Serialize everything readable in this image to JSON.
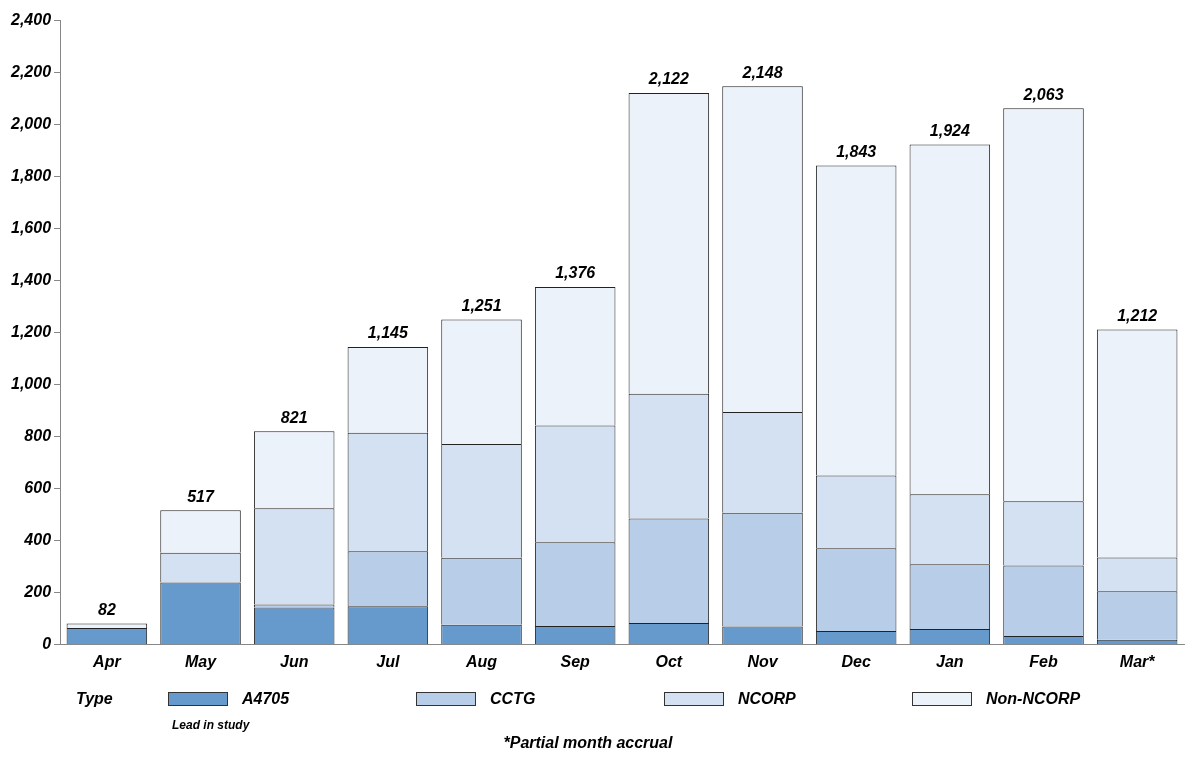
{
  "chart_data": {
    "type": "bar",
    "stacked": true,
    "categories": [
      "Apr",
      "May",
      "Jun",
      "Jul",
      "Aug",
      "Sep",
      "Oct",
      "Nov",
      "Dec",
      "Jan",
      "Feb",
      "Mar*"
    ],
    "series": [
      {
        "name": "A4705",
        "color": "#6699cc",
        "values": [
          65,
          240,
          143,
          148,
          77,
          72,
          84,
          70,
          53,
          61,
          34,
          19
        ]
      },
      {
        "name": "CCTG",
        "color": "#b8cde8",
        "values": [
          0,
          0,
          12,
          212,
          258,
          322,
          402,
          438,
          318,
          249,
          271,
          187
        ]
      },
      {
        "name": "NCORP",
        "color": "#d3e1f2",
        "values": [
          0,
          114,
          370,
          455,
          437,
          449,
          479,
          387,
          280,
          269,
          247,
          130
        ]
      },
      {
        "name": "Non-NCORP",
        "color": "#ecf2fa",
        "values": [
          17,
          163,
          296,
          330,
          479,
          533,
          1157,
          1253,
          1192,
          1345,
          1511,
          876
        ]
      }
    ],
    "totals": [
      "82",
      "517",
      "821",
      "1,145",
      "1,251",
      "1,376",
      "2,122",
      "2,148",
      "1,843",
      "1,924",
      "2,063",
      "1,212"
    ],
    "ylim": [
      0,
      2400
    ],
    "yticks": [
      0,
      200,
      400,
      600,
      800,
      {
        "value": 1000,
        "label": "1,000"
      },
      {
        "value": 1200,
        "label": "1,200"
      },
      {
        "value": 1400,
        "label": "1,400"
      },
      {
        "value": 1600,
        "label": "1,600"
      },
      {
        "value": 1800,
        "label": "1,800"
      },
      {
        "value": 2000,
        "label": "2,000"
      },
      {
        "value": 2200,
        "label": "2,200"
      },
      {
        "value": 2400,
        "label": "2,400"
      }
    ],
    "grid": false,
    "legend": "bottom",
    "legend_title": "Type",
    "annotations": [
      "Lead in study",
      "*Partial month accrual"
    ]
  }
}
